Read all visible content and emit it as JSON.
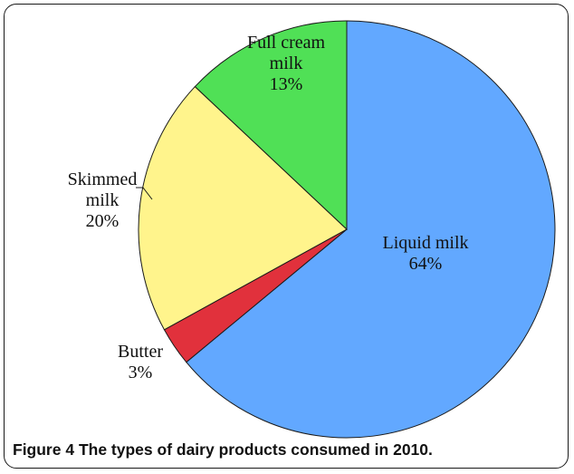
{
  "chart_data": {
    "type": "pie",
    "slices": [
      {
        "label_lines": [
          "Liquid milk",
          "64%"
        ],
        "value": 64,
        "color": "#62a8ff"
      },
      {
        "label_lines": [
          "Butter",
          "3%"
        ],
        "value": 3,
        "color": "#e1313c"
      },
      {
        "label_lines": [
          "Skimmed",
          "milk",
          "20%"
        ],
        "value": 20,
        "color": "#fff48c"
      },
      {
        "label_lines": [
          "Full cream",
          "milk",
          "13%"
        ],
        "value": 13,
        "color": "#50e056"
      }
    ],
    "start": "12 o'clock",
    "direction": "clockwise",
    "legend": "none"
  },
  "caption": {
    "figure": "Figure 4",
    "text": "The types of dairy products consumed in 2010."
  }
}
